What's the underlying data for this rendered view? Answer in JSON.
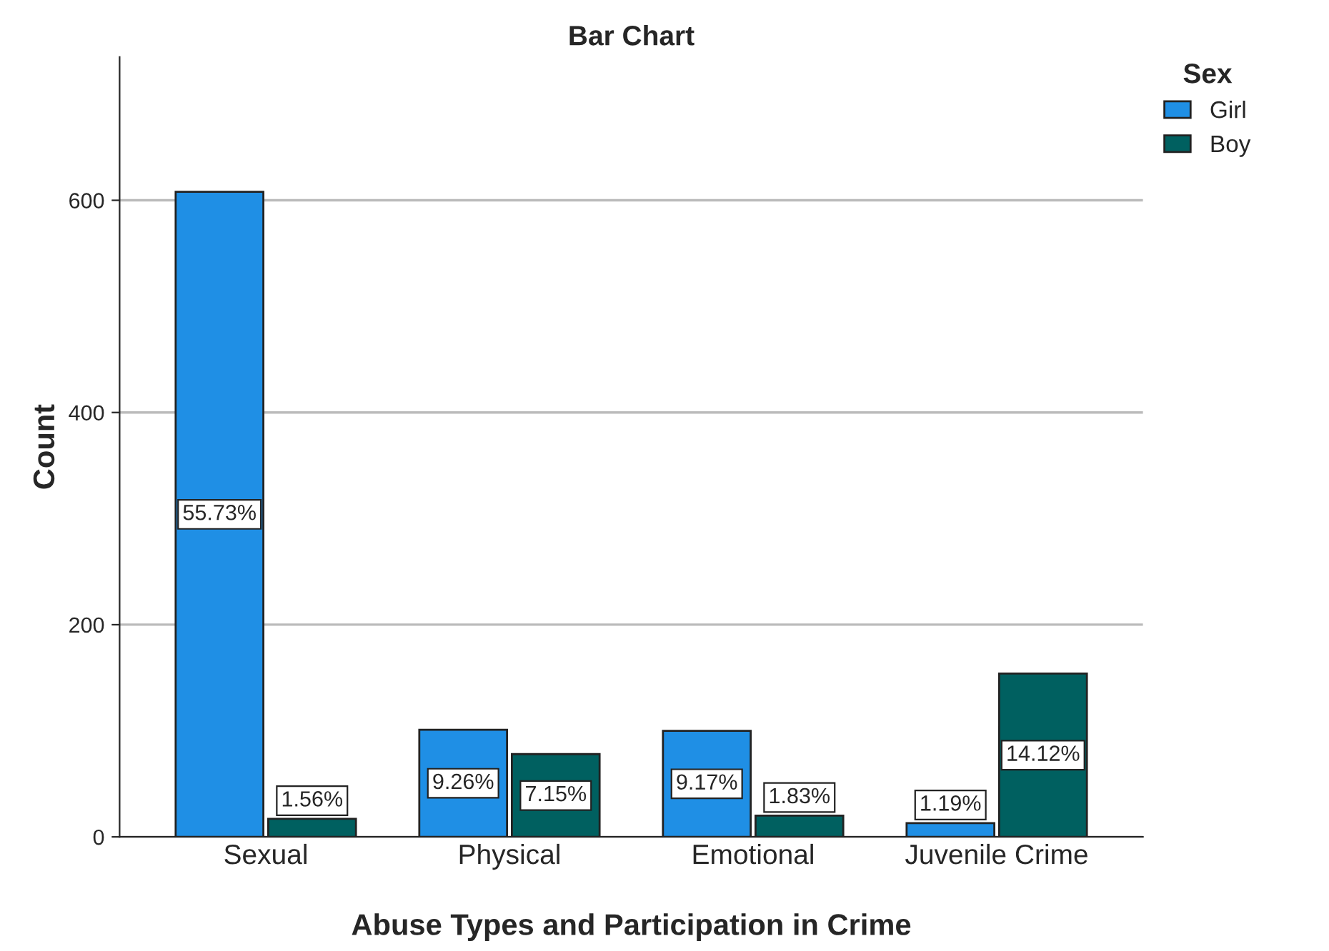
{
  "chart_data": {
    "type": "bar",
    "title": "Bar Chart",
    "xlabel": "Abuse Types and Participation in Crime",
    "ylabel": "Count",
    "legend_title": "Sex",
    "categories": [
      "Sexual",
      "Physical",
      "Emotional",
      "Juvenile Crime"
    ],
    "series": [
      {
        "name": "Girl",
        "color": "#1f8fe5",
        "values": [
          608,
          101,
          100,
          13
        ]
      },
      {
        "name": "Boy",
        "color": "#006060",
        "values": [
          17,
          78,
          20,
          154
        ]
      }
    ],
    "annotations": [
      {
        "text": "55.73%",
        "x": "Sexual",
        "y": 304
      },
      {
        "text": "1.56%",
        "x": "Sexual",
        "y": 17
      },
      {
        "text": "9.26%",
        "x": "Physical",
        "y": 50.5
      },
      {
        "text": "7.15%",
        "x": "Physical",
        "y": 39
      },
      {
        "text": "9.17%",
        "x": "Emotional",
        "y": 50
      },
      {
        "text": "1.83%",
        "x": "Emotional",
        "y": 20
      },
      {
        "text": "1.19%",
        "x": "Juvenile Crime",
        "y": 13
      },
      {
        "text": "14.12%",
        "x": "Juvenile Crime",
        "y": 77
      }
    ],
    "ylim": [
      0,
      735
    ],
    "yticks": [
      0,
      200,
      400,
      600
    ],
    "grid": "y",
    "legend": "top right"
  }
}
